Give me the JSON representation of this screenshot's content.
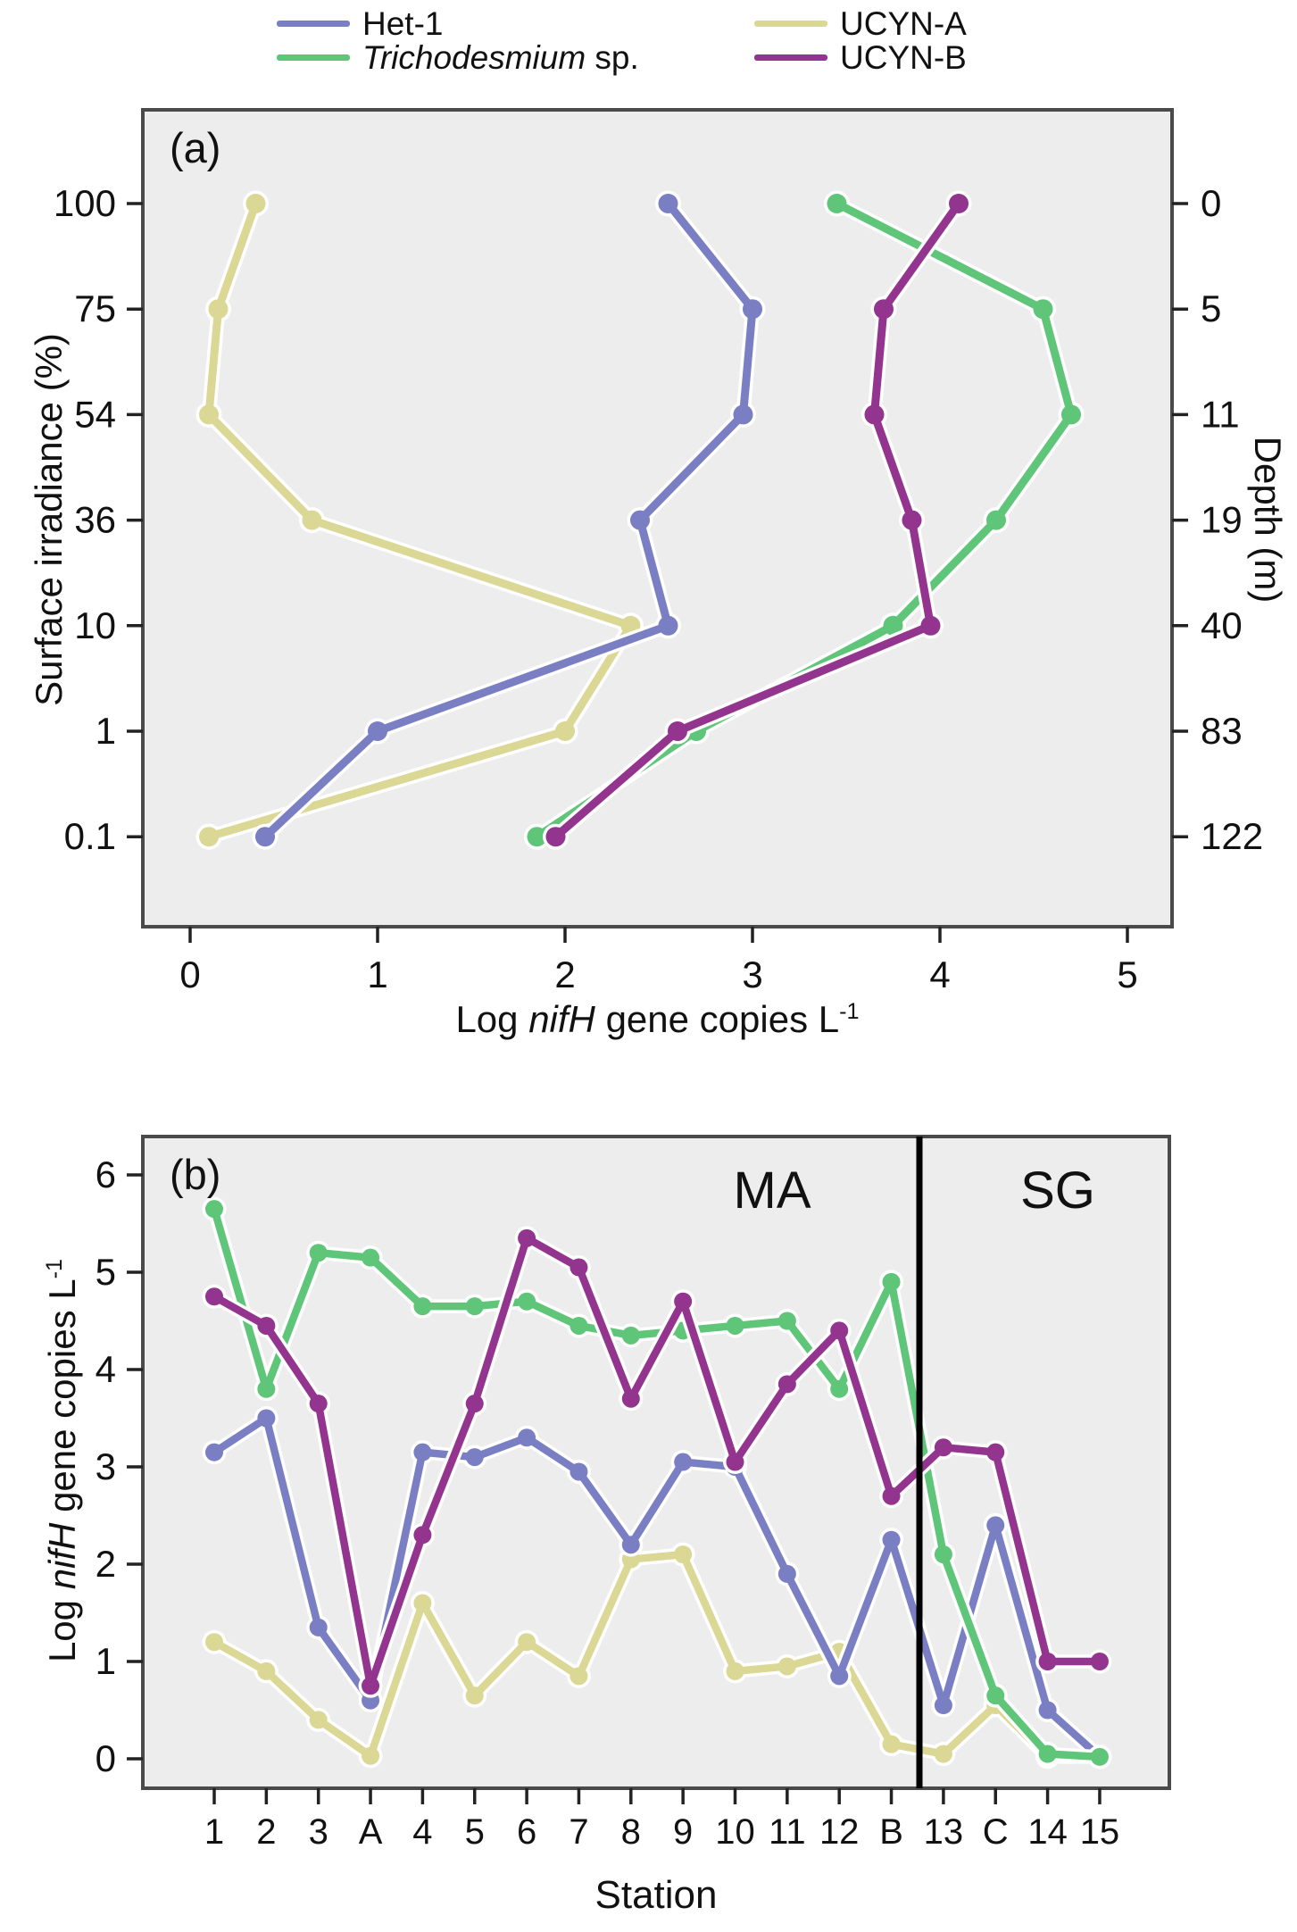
{
  "legend": {
    "items": [
      {
        "label": "Het-1",
        "color": "#7a7fc4"
      },
      {
        "label_italic": "Trichodesmium",
        "label_rest": " sp.",
        "color": "#5fc579"
      },
      {
        "label": "UCYN-A",
        "color": "#dbd795"
      },
      {
        "label": "UCYN-B",
        "color": "#93348f"
      }
    ]
  },
  "panel_a": {
    "tag": "(a)",
    "y_left_title": "Surface irradiance (%)",
    "y_right_title": "Depth (m)",
    "x_title_pre": "Log ",
    "x_title_italic": "nifH",
    "x_title_post": " gene copies L",
    "x_title_sup": "-1"
  },
  "panel_b": {
    "tag": "(b)",
    "y_title_pre": "Log ",
    "y_title_italic": "nifH",
    "y_title_post": " gene copies L",
    "y_title_sup": "-1",
    "x_title": "Station",
    "region_left": "MA",
    "region_right": "SG"
  },
  "chart_data": [
    {
      "type": "line",
      "panel": "a",
      "title": "(a)",
      "xlabel": "Log nifH gene copies L-1",
      "ylabel_left": "Surface irradiance (%)",
      "ylabel_right": "Depth (m)",
      "xlim": [
        -0.25,
        5.3
      ],
      "x_ticks": [
        "0",
        "1",
        "2",
        "3",
        "4",
        "5"
      ],
      "x_tick_values": [
        0,
        1,
        2,
        3,
        4,
        5
      ],
      "y_categories_irradiance": [
        "100",
        "75",
        "54",
        "36",
        "10",
        "1",
        "0.1"
      ],
      "y_categories_depth": [
        "0",
        "5",
        "11",
        "19",
        "40",
        "83",
        "122"
      ],
      "grid": false,
      "plot_bg": "#ededed",
      "series": [
        {
          "name": "UCYN-A",
          "color": "#dbd795",
          "values": [
            0.35,
            0.15,
            0.1,
            0.65,
            2.35,
            2.0,
            0.1
          ]
        },
        {
          "name": "Het-1",
          "color": "#7a7fc4",
          "values": [
            2.55,
            3.0,
            2.95,
            2.4,
            2.55,
            1.0,
            0.4
          ]
        },
        {
          "name": "Trichodesmium sp.",
          "color": "#5fc579",
          "values": [
            3.45,
            4.55,
            4.7,
            4.3,
            3.75,
            2.7,
            1.85
          ]
        },
        {
          "name": "UCYN-B",
          "color": "#93348f",
          "values": [
            4.1,
            3.7,
            3.65,
            3.85,
            3.95,
            2.6,
            1.95
          ]
        }
      ]
    },
    {
      "type": "line",
      "panel": "b",
      "title": "(b)",
      "xlabel": "Station",
      "ylabel": "Log nifH gene copies L-1",
      "ylim": [
        0,
        6
      ],
      "y_ticks": [
        "0",
        "1",
        "2",
        "3",
        "4",
        "5",
        "6"
      ],
      "y_tick_values": [
        0,
        1,
        2,
        3,
        4,
        5,
        6
      ],
      "categories": [
        "1",
        "2",
        "3",
        "A",
        "4",
        "5",
        "6",
        "7",
        "8",
        "9",
        "10",
        "11",
        "12",
        "B",
        "13",
        "C",
        "14",
        "15"
      ],
      "regions": {
        "left_label": "MA",
        "right_label": "SG",
        "divider_between": [
          "B",
          "13"
        ]
      },
      "grid": false,
      "plot_bg": "#ededed",
      "series": [
        {
          "name": "UCYN-A",
          "color": "#dbd795",
          "values": [
            1.2,
            0.9,
            0.4,
            0.03,
            1.6,
            0.65,
            1.2,
            0.85,
            2.05,
            2.1,
            0.9,
            0.95,
            1.1,
            0.15,
            0.05,
            0.55,
            0.02,
            0.02
          ]
        },
        {
          "name": "Het-1",
          "color": "#7a7fc4",
          "values": [
            3.15,
            3.5,
            1.35,
            0.6,
            3.15,
            3.1,
            3.3,
            2.95,
            2.2,
            3.05,
            3.0,
            1.9,
            0.85,
            2.25,
            0.55,
            2.4,
            0.5,
            0.02
          ]
        },
        {
          "name": "Trichodesmium sp.",
          "color": "#5fc579",
          "values": [
            5.65,
            3.8,
            5.2,
            5.15,
            4.65,
            4.65,
            4.7,
            4.45,
            4.35,
            4.4,
            4.45,
            4.5,
            3.8,
            4.9,
            2.1,
            0.65,
            0.05,
            0.02
          ]
        },
        {
          "name": "UCYN-B",
          "color": "#93348f",
          "values": [
            4.75,
            4.45,
            3.65,
            0.75,
            2.3,
            3.65,
            5.35,
            5.05,
            3.7,
            4.7,
            3.05,
            3.85,
            4.4,
            2.7,
            3.2,
            3.15,
            1.0,
            1.0
          ]
        }
      ]
    }
  ]
}
